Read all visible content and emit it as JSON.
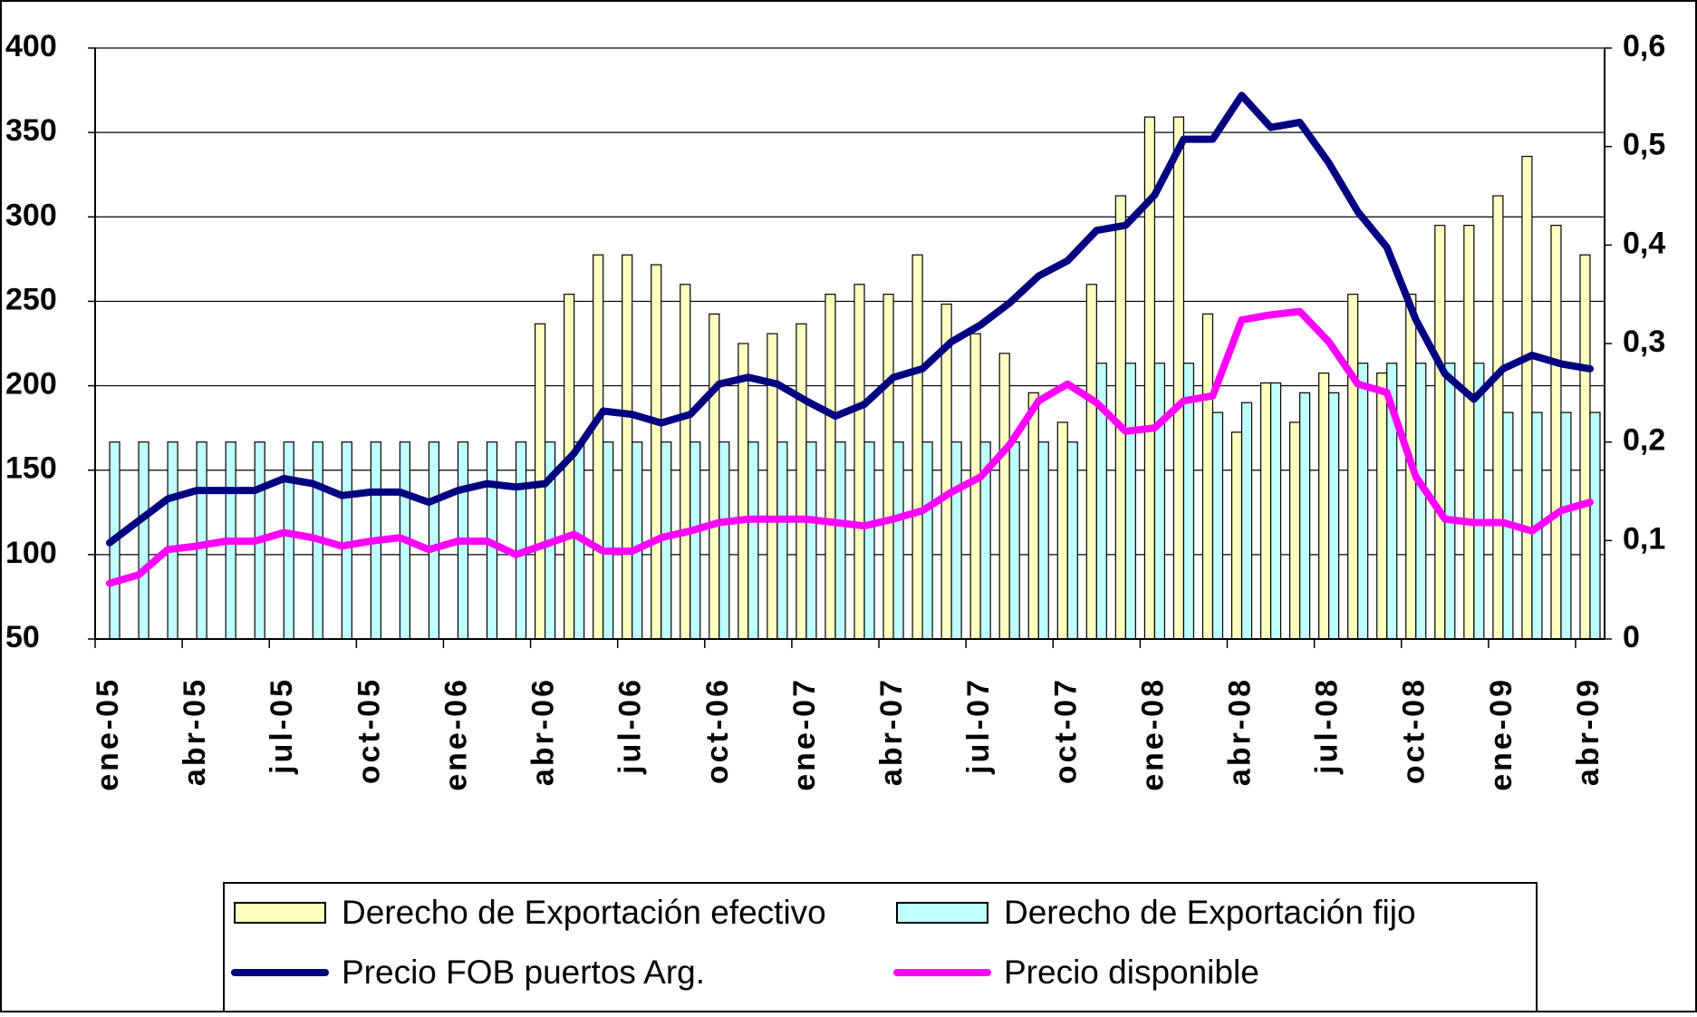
{
  "chart_data": {
    "type": "combo",
    "categories": [
      "ene-05",
      null,
      null,
      "abr-05",
      null,
      null,
      "jul-05",
      null,
      null,
      "oct-05",
      null,
      null,
      "ene-06",
      null,
      null,
      "abr-06",
      null,
      null,
      "jul-06",
      null,
      null,
      "oct-06",
      null,
      null,
      "ene-07",
      null,
      null,
      "abr-07",
      null,
      null,
      "jul-07",
      null,
      null,
      "oct-07",
      null,
      null,
      "ene-08",
      null,
      null,
      "abr-08",
      null,
      null,
      "jul-08",
      null,
      null,
      "oct-08",
      null,
      null,
      "ene-09",
      null,
      null,
      "abr-09"
    ],
    "series": [
      {
        "name": "Derecho de Exportación efectivo",
        "type": "bar",
        "axis": "y2",
        "color": "#ffffc0",
        "values": [
          null,
          null,
          null,
          null,
          null,
          null,
          null,
          null,
          null,
          null,
          null,
          null,
          null,
          null,
          null,
          0.32,
          0.35,
          0.39,
          0.39,
          0.38,
          0.36,
          0.33,
          0.3,
          0.31,
          0.32,
          0.35,
          0.36,
          0.35,
          0.39,
          0.34,
          0.31,
          0.29,
          0.25,
          0.22,
          0.36,
          0.45,
          0.53,
          0.53,
          0.33,
          0.21,
          0.26,
          0.22,
          0.27,
          0.35,
          0.27,
          0.35,
          0.42,
          0.42,
          0.45,
          0.49,
          0.42,
          0.39
        ]
      },
      {
        "name": "Derecho de Exportación fijo",
        "type": "bar",
        "axis": "y2",
        "color": "#c0ffff",
        "values": [
          0.2,
          0.2,
          0.2,
          0.2,
          0.2,
          0.2,
          0.2,
          0.2,
          0.2,
          0.2,
          0.2,
          0.2,
          0.2,
          0.2,
          0.2,
          0.2,
          0.2,
          0.2,
          0.2,
          0.2,
          0.2,
          0.2,
          0.2,
          0.2,
          0.2,
          0.2,
          0.2,
          0.2,
          0.2,
          0.2,
          0.2,
          0.2,
          0.2,
          0.2,
          0.28,
          0.28,
          0.28,
          0.28,
          0.23,
          0.24,
          0.26,
          0.25,
          0.25,
          0.28,
          0.28,
          0.28,
          0.28,
          0.28,
          0.23,
          0.23,
          0.23,
          0.23
        ]
      },
      {
        "name": "Precio FOB puertos Arg.",
        "type": "line",
        "color": "#000080",
        "values": [
          107,
          120,
          133,
          138,
          138,
          138,
          145,
          142,
          135,
          137,
          137,
          131,
          138,
          142,
          140,
          142,
          160,
          185,
          183,
          178,
          183,
          201,
          205,
          201,
          191,
          182,
          189,
          205,
          210,
          226,
          236,
          249,
          265,
          274,
          292,
          295,
          313,
          346,
          346,
          372,
          353,
          356,
          332,
          303,
          282,
          239,
          207,
          192,
          210,
          218,
          213,
          210
        ]
      },
      {
        "name": "Precio disponible",
        "type": "line",
        "color": "#ff00ff",
        "values": [
          83,
          88,
          103,
          105,
          108,
          108,
          113,
          110,
          105,
          108,
          110,
          103,
          108,
          108,
          100,
          106,
          112,
          102,
          102,
          110,
          114,
          119,
          121,
          121,
          121,
          119,
          117,
          121,
          126,
          137,
          146,
          165,
          191,
          201,
          190,
          173,
          175,
          191,
          194,
          239,
          242,
          244,
          226,
          201,
          196,
          146,
          121,
          119,
          119,
          114,
          126,
          131
        ]
      }
    ],
    "ylim": [
      50,
      400
    ],
    "yticks": [
      50,
      100,
      150,
      200,
      250,
      300,
      350,
      400
    ],
    "y2lim": [
      0,
      0.6
    ],
    "y2ticks": [
      0,
      {
        "value": 0.1,
        "label": "0,1"
      },
      {
        "value": 0.2,
        "label": "0,2"
      },
      {
        "value": 0.3,
        "label": "0,3"
      },
      {
        "value": 0.4,
        "label": "0,4"
      },
      {
        "value": 0.5,
        "label": "0,5"
      },
      {
        "value": 0.6,
        "label": "0,6"
      }
    ],
    "grid": true,
    "legend": "bottom"
  }
}
